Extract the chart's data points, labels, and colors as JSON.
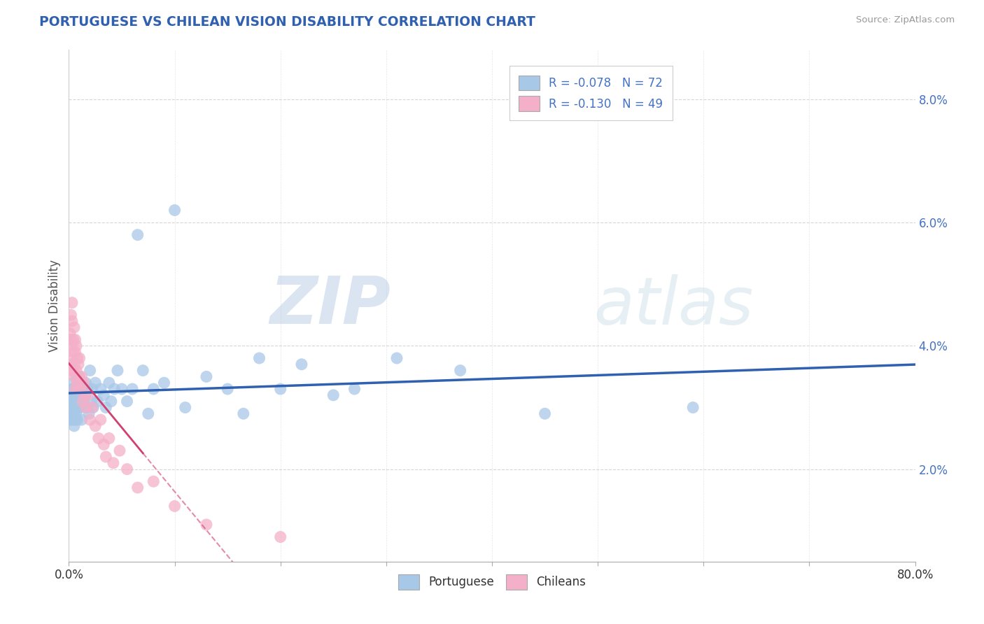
{
  "title": "PORTUGUESE VS CHILEAN VISION DISABILITY CORRELATION CHART",
  "source": "Source: ZipAtlas.com",
  "ylabel": "Vision Disability",
  "xlim": [
    0.0,
    0.8
  ],
  "ylim": [
    0.005,
    0.088
  ],
  "xticks": [
    0.0,
    0.1,
    0.2,
    0.3,
    0.4,
    0.5,
    0.6,
    0.7,
    0.8
  ],
  "yticks": [
    0.02,
    0.04,
    0.06,
    0.08
  ],
  "yticklabels": [
    "2.0%",
    "4.0%",
    "6.0%",
    "8.0%"
  ],
  "portuguese_R": "-0.078",
  "portuguese_N": "72",
  "chilean_R": "-0.130",
  "chilean_N": "49",
  "portuguese_color": "#a8c8e8",
  "chilean_color": "#f4b0c8",
  "portuguese_line_color": "#3060b0",
  "chilean_line_color": "#d04070",
  "watermark_zip": "ZIP",
  "watermark_atlas": "atlas",
  "legend_labels": [
    "Portuguese",
    "Chileans"
  ],
  "portuguese_x": [
    0.001,
    0.002,
    0.002,
    0.003,
    0.003,
    0.003,
    0.004,
    0.004,
    0.004,
    0.005,
    0.005,
    0.005,
    0.005,
    0.006,
    0.006,
    0.006,
    0.007,
    0.007,
    0.007,
    0.008,
    0.008,
    0.008,
    0.009,
    0.009,
    0.01,
    0.01,
    0.011,
    0.011,
    0.012,
    0.012,
    0.013,
    0.014,
    0.015,
    0.016,
    0.017,
    0.018,
    0.019,
    0.02,
    0.021,
    0.022,
    0.023,
    0.025,
    0.027,
    0.03,
    0.033,
    0.035,
    0.038,
    0.04,
    0.043,
    0.046,
    0.05,
    0.055,
    0.06,
    0.065,
    0.07,
    0.075,
    0.08,
    0.09,
    0.1,
    0.11,
    0.13,
    0.15,
    0.165,
    0.18,
    0.2,
    0.22,
    0.25,
    0.27,
    0.31,
    0.37,
    0.45,
    0.59
  ],
  "portuguese_y": [
    0.03,
    0.032,
    0.028,
    0.031,
    0.029,
    0.033,
    0.028,
    0.03,
    0.034,
    0.033,
    0.029,
    0.031,
    0.027,
    0.03,
    0.032,
    0.028,
    0.035,
    0.029,
    0.031,
    0.034,
    0.028,
    0.032,
    0.03,
    0.033,
    0.031,
    0.035,
    0.03,
    0.032,
    0.028,
    0.034,
    0.033,
    0.031,
    0.032,
    0.034,
    0.03,
    0.033,
    0.029,
    0.036,
    0.031,
    0.033,
    0.03,
    0.034,
    0.031,
    0.033,
    0.032,
    0.03,
    0.034,
    0.031,
    0.033,
    0.036,
    0.033,
    0.031,
    0.033,
    0.058,
    0.036,
    0.029,
    0.033,
    0.034,
    0.062,
    0.03,
    0.035,
    0.033,
    0.029,
    0.038,
    0.033,
    0.037,
    0.032,
    0.033,
    0.038,
    0.036,
    0.029,
    0.03
  ],
  "chilean_x": [
    0.001,
    0.001,
    0.002,
    0.002,
    0.002,
    0.003,
    0.003,
    0.003,
    0.003,
    0.004,
    0.004,
    0.004,
    0.005,
    0.005,
    0.005,
    0.006,
    0.006,
    0.006,
    0.007,
    0.007,
    0.008,
    0.008,
    0.009,
    0.009,
    0.01,
    0.01,
    0.011,
    0.012,
    0.013,
    0.014,
    0.015,
    0.016,
    0.018,
    0.02,
    0.022,
    0.025,
    0.028,
    0.03,
    0.033,
    0.035,
    0.038,
    0.042,
    0.048,
    0.055,
    0.065,
    0.08,
    0.1,
    0.13,
    0.2
  ],
  "chilean_y": [
    0.038,
    0.042,
    0.037,
    0.045,
    0.041,
    0.036,
    0.044,
    0.04,
    0.047,
    0.036,
    0.041,
    0.039,
    0.043,
    0.037,
    0.035,
    0.039,
    0.033,
    0.041,
    0.036,
    0.04,
    0.034,
    0.038,
    0.033,
    0.037,
    0.035,
    0.038,
    0.033,
    0.035,
    0.031,
    0.034,
    0.032,
    0.03,
    0.032,
    0.028,
    0.03,
    0.027,
    0.025,
    0.028,
    0.024,
    0.022,
    0.025,
    0.021,
    0.023,
    0.02,
    0.017,
    0.018,
    0.014,
    0.011,
    0.009
  ]
}
